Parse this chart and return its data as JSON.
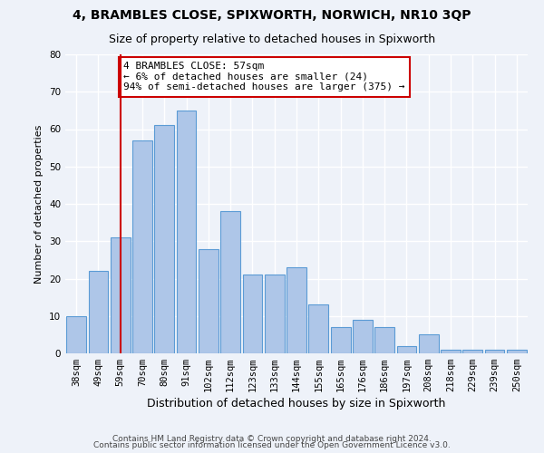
{
  "title1": "4, BRAMBLES CLOSE, SPIXWORTH, NORWICH, NR10 3QP",
  "title2": "Size of property relative to detached houses in Spixworth",
  "xlabel": "Distribution of detached houses by size in Spixworth",
  "ylabel": "Number of detached properties",
  "categories": [
    "38sqm",
    "49sqm",
    "59sqm",
    "70sqm",
    "80sqm",
    "91sqm",
    "102sqm",
    "112sqm",
    "123sqm",
    "133sqm",
    "144sqm",
    "155sqm",
    "165sqm",
    "176sqm",
    "186sqm",
    "197sqm",
    "208sqm",
    "218sqm",
    "229sqm",
    "239sqm",
    "250sqm"
  ],
  "values": [
    10,
    22,
    31,
    57,
    61,
    65,
    28,
    38,
    21,
    21,
    23,
    13,
    7,
    9,
    7,
    2,
    5,
    1,
    1,
    1,
    1
  ],
  "bar_color": "#aec6e8",
  "bar_edge_color": "#5b9bd5",
  "highlight_line_color": "#cc0000",
  "highlight_line_index": 2,
  "annotation_text": "4 BRAMBLES CLOSE: 57sqm\n← 6% of detached houses are smaller (24)\n94% of semi-detached houses are larger (375) →",
  "annotation_box_color": "#ffffff",
  "annotation_box_edge_color": "#cc0000",
  "ylim": [
    0,
    80
  ],
  "yticks": [
    0,
    10,
    20,
    30,
    40,
    50,
    60,
    70,
    80
  ],
  "footer1": "Contains HM Land Registry data © Crown copyright and database right 2024.",
  "footer2": "Contains public sector information licensed under the Open Government Licence v3.0.",
  "background_color": "#eef2f9",
  "grid_color": "#ffffff",
  "title1_fontsize": 10,
  "title2_fontsize": 9,
  "xlabel_fontsize": 9,
  "ylabel_fontsize": 8,
  "tick_fontsize": 7.5,
  "annotation_fontsize": 8,
  "footer_fontsize": 6.5
}
